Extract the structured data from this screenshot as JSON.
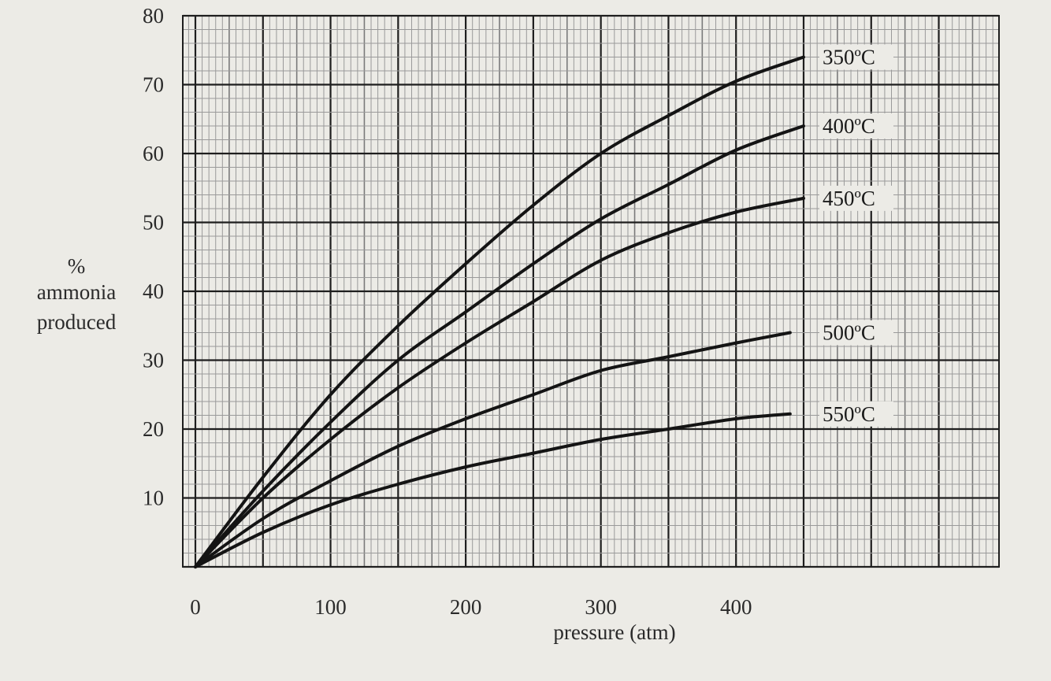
{
  "chart_data": {
    "type": "line",
    "title": "",
    "xlabel": "pressure (atm)",
    "ylabel": [
      "%",
      "ammonia",
      "produced"
    ],
    "xlim": [
      0,
      450
    ],
    "ylim": [
      0,
      80
    ],
    "x_ticks": [
      "0",
      "100",
      "200",
      "300",
      "400"
    ],
    "y_ticks": [
      "10",
      "20",
      "30",
      "40",
      "50",
      "60",
      "70",
      "80"
    ],
    "grid": true,
    "series": [
      {
        "name": "350ºC",
        "x": [
          0,
          50,
          100,
          150,
          200,
          250,
          300,
          350,
          400,
          450
        ],
        "y": [
          0,
          13,
          25,
          35,
          44,
          52.5,
          60,
          65.5,
          70.5,
          74
        ]
      },
      {
        "name": "400ºC",
        "x": [
          0,
          50,
          100,
          150,
          200,
          250,
          300,
          350,
          400,
          450
        ],
        "y": [
          0,
          11,
          21,
          30,
          37,
          44,
          50.5,
          55.5,
          60.5,
          64
        ]
      },
      {
        "name": "450ºC",
        "x": [
          0,
          50,
          100,
          150,
          200,
          250,
          300,
          350,
          400,
          450
        ],
        "y": [
          0,
          10,
          18.5,
          26,
          32.5,
          38.5,
          44.5,
          48.5,
          51.5,
          53.5
        ]
      },
      {
        "name": "500ºC",
        "x": [
          0,
          50,
          100,
          150,
          200,
          250,
          300,
          350,
          400,
          440
        ],
        "y": [
          0,
          7,
          12.5,
          17.5,
          21.5,
          25,
          28.5,
          30.5,
          32.5,
          34
        ]
      },
      {
        "name": "550ºC",
        "x": [
          0,
          50,
          100,
          150,
          200,
          250,
          300,
          350,
          400,
          440
        ],
        "y": [
          0,
          5,
          9,
          12,
          14.5,
          16.5,
          18.5,
          20,
          21.5,
          22.2
        ]
      }
    ]
  }
}
